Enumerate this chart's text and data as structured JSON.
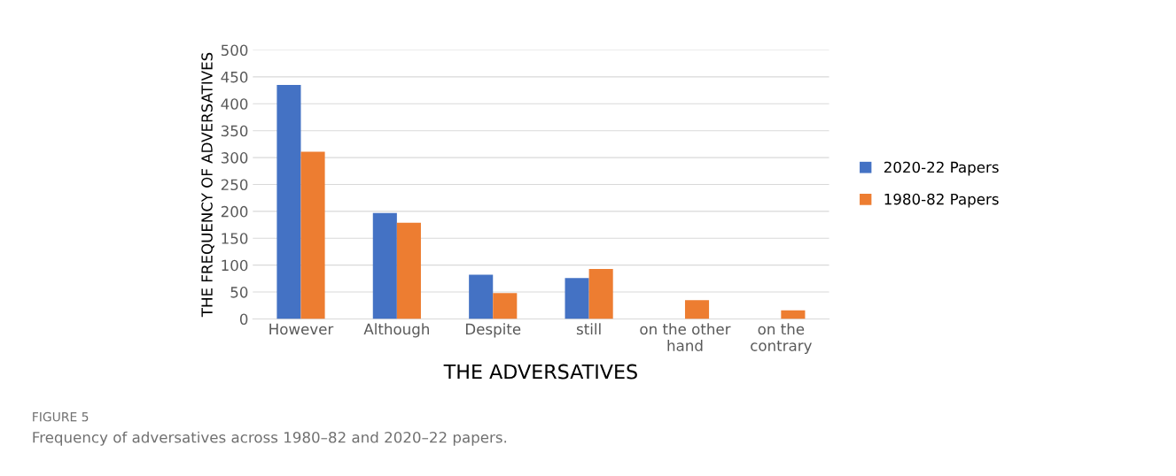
{
  "chart_data": {
    "type": "bar",
    "xlabel": "THE ADVERSATIVES",
    "ylabel": "THE FREQUENCY OF ADVERSATIVES",
    "categories": [
      "However",
      "Although",
      "Despite",
      "still",
      "on the other\nhand",
      "on the\ncontrary"
    ],
    "series": [
      {
        "name": "2020-22 Papers",
        "color": "#4472c4",
        "values": [
          435,
          197,
          82,
          76,
          0,
          0
        ]
      },
      {
        "name": "1980-82 Papers",
        "color": "#ed7d31",
        "values": [
          311,
          179,
          48,
          93,
          35,
          16
        ]
      }
    ],
    "ylim": [
      0,
      500
    ],
    "yticks": [
      0,
      50,
      100,
      150,
      200,
      250,
      300,
      350,
      400,
      450,
      500
    ],
    "grid": "y",
    "legend": "right",
    "annotations": [
      "FIGURE 5",
      "Frequency of adversatives across 1980–82 and 2020–22 papers."
    ]
  }
}
